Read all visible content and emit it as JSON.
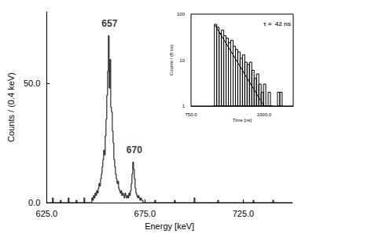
{
  "chart_data": [
    {
      "type": "histogram",
      "x_label": "Energy [keV]",
      "y_label": "Counts / (0.4 keV)",
      "color": "#000000",
      "bins": [
        625,
        628,
        628.4,
        632,
        632.4,
        636,
        636.4,
        640,
        640.4,
        644,
        644.4,
        648,
        648.4,
        648.8,
        649.2,
        649.6,
        650,
        650.4,
        650.8,
        651.2,
        651.6,
        652,
        652.4,
        652.8,
        653.2,
        653.6,
        654,
        654.4,
        654.8,
        655.2,
        655.6,
        656,
        656.4,
        656.8,
        657.2,
        657.6,
        658,
        658.4,
        658.8,
        659.2,
        659.6,
        660,
        660.4,
        660.8,
        661.2,
        661.6,
        662,
        662.4,
        662.8,
        663.2,
        663.6,
        664,
        664.4,
        664.8,
        665.2,
        665.6,
        666,
        666.4,
        666.8,
        667.2,
        667.6,
        668,
        668.4,
        668.8,
        669.2,
        669.6,
        670,
        670.4,
        670.8,
        671.2,
        671.6,
        672,
        672.4,
        672.8,
        673.2,
        673.6,
        674,
        680,
        680.4,
        690,
        690.4,
        700,
        700.4,
        712,
        712.4,
        730,
        730.4,
        740,
        740.4,
        750
      ],
      "counts": [
        0,
        2,
        0,
        1,
        0,
        2,
        0,
        1,
        0,
        2,
        0,
        2,
        1,
        3,
        2,
        4,
        3,
        5,
        4,
        6,
        8,
        7,
        10,
        12,
        15,
        18,
        22,
        20,
        28,
        35,
        45,
        55,
        70,
        48,
        60,
        40,
        38,
        30,
        25,
        18,
        15,
        12,
        10,
        8,
        9,
        6,
        5,
        4,
        5,
        3,
        4,
        3,
        2,
        4,
        3,
        2,
        3,
        2,
        4,
        3,
        5,
        8,
        12,
        17,
        14,
        10,
        6,
        4,
        3,
        2,
        3,
        2,
        1,
        2,
        1,
        1,
        0,
        1,
        0,
        1,
        0,
        2,
        0,
        1,
        0,
        1,
        0,
        1,
        0
      ],
      "xlim": [
        625,
        750
      ],
      "xticks": [
        {
          "value": 625,
          "label": "625.0"
        },
        {
          "value": 675,
          "label": "675.0"
        },
        {
          "value": 725,
          "label": "725.0"
        }
      ],
      "ylim": [
        0,
        80
      ],
      "yticks": [
        {
          "value": 0,
          "label": "0.0"
        },
        {
          "value": 50,
          "label": "50.0"
        }
      ],
      "grid": false,
      "annotations": [
        {
          "text": "657",
          "x": 657,
          "y": 75
        },
        {
          "text": "670",
          "x": 669.6,
          "y": 22
        }
      ]
    },
    {
      "type": "histogram",
      "x_label": "Time [ns]",
      "y_label": "Counts / (8 ns)",
      "color": "#000000",
      "log": "y",
      "bins": [
        830,
        838,
        846,
        854,
        862,
        870,
        878,
        886,
        894,
        902,
        910,
        918,
        926,
        934,
        942,
        950,
        958,
        966,
        974,
        982,
        990,
        998,
        1006,
        1014,
        1022,
        1030,
        1038,
        1046,
        1054,
        1062,
        1070
      ],
      "counts": [
        60,
        52,
        38,
        45,
        34,
        30,
        24,
        27,
        20,
        17,
        15,
        11,
        13,
        9,
        8,
        9,
        6,
        4,
        5,
        3,
        2,
        3,
        1,
        2,
        1,
        0,
        0,
        2,
        2,
        0
      ],
      "fit": {
        "x": [
          832,
          1000
        ],
        "values": [
          58,
          1
        ]
      },
      "xlim": [
        750,
        1100
      ],
      "xticks": [
        {
          "value": 750,
          "label": "750.0"
        },
        {
          "value": 1000,
          "label": "1000.0"
        }
      ],
      "ylim": [
        1,
        100
      ],
      "yticks": [
        1,
        10,
        100
      ],
      "grid": false,
      "annotations": [
        {
          "text": "τ =  42 ns",
          "x": 1045,
          "y": 60
        }
      ]
    }
  ]
}
